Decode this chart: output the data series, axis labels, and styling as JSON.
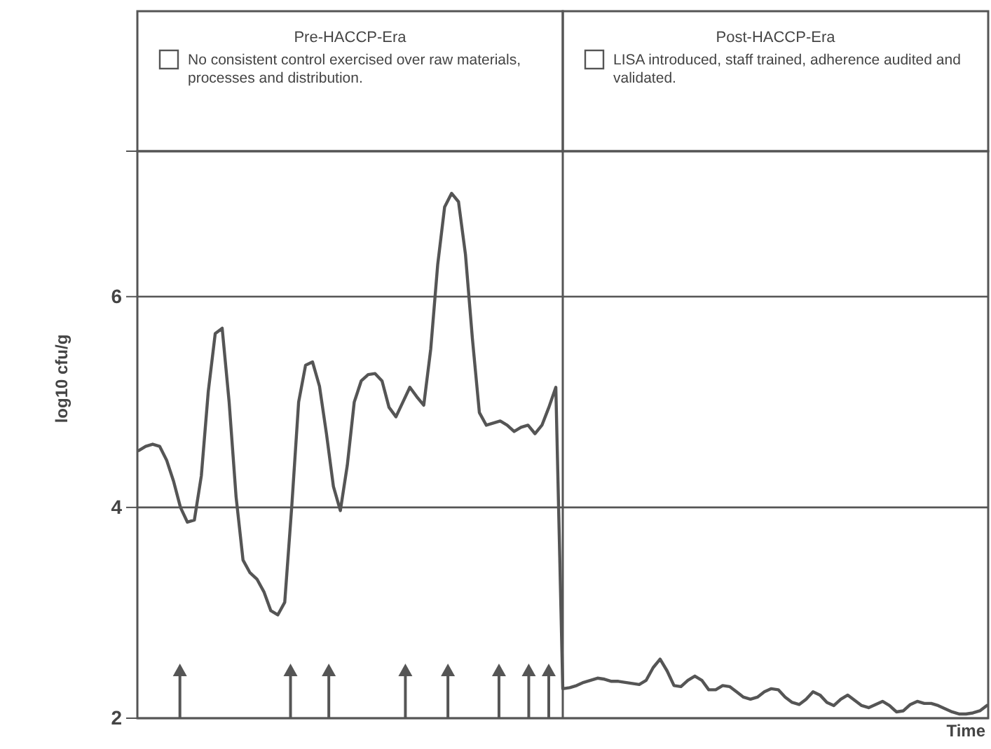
{
  "chart_data": {
    "type": "line",
    "ylabel": "log10 cfu/g",
    "xlabel": "Time",
    "annotations": [
      "Pre-HACCP-Era",
      "No consistent control exercised over raw materials, processes and distribution.",
      "Post-HACCP-Era",
      "LISA introduced, staff trained, adherence audited and validated."
    ],
    "categories": [
      null,
      null,
      null,
      null,
      null,
      null,
      null,
      null,
      null,
      null,
      null,
      null,
      null,
      null,
      null,
      null,
      null,
      null,
      null,
      null,
      null,
      null,
      null,
      null,
      null,
      null,
      null,
      null,
      null,
      null,
      null,
      null,
      null,
      null,
      null,
      null,
      null,
      null,
      null,
      null,
      null,
      null,
      null,
      null,
      null,
      null,
      null,
      null,
      null,
      null,
      null,
      null,
      null,
      null,
      null,
      null,
      null,
      null,
      null,
      null,
      null,
      null,
      null,
      null,
      null,
      null,
      null,
      null,
      null,
      null,
      null,
      null,
      null,
      null,
      null,
      null,
      null,
      null,
      null,
      null,
      null,
      null,
      null,
      null,
      null,
      null,
      null,
      null,
      null,
      null,
      null,
      null,
      null,
      null,
      null,
      null,
      null,
      null,
      null,
      null,
      null,
      null,
      null,
      null,
      null,
      null,
      null,
      null,
      null,
      null,
      null,
      null,
      null,
      null,
      null,
      null,
      null,
      null,
      null,
      null,
      null,
      null,
      null
    ],
    "series": [
      {
        "color": "#555555",
        "values": [
          4.54,
          4.58,
          4.6,
          4.58,
          4.45,
          4.25,
          4.0,
          3.86,
          3.88,
          4.3,
          5.1,
          5.65,
          5.7,
          5.0,
          4.1,
          3.5,
          3.38,
          3.32,
          3.2,
          3.02,
          2.98,
          3.1,
          4.0,
          5.0,
          5.35,
          5.38,
          5.15,
          4.7,
          4.2,
          3.97,
          4.4,
          5.0,
          5.2,
          5.26,
          5.27,
          5.2,
          4.95,
          4.86,
          5.0,
          5.14,
          5.05,
          4.97,
          5.5,
          6.3,
          6.85,
          6.98,
          6.9,
          6.4,
          5.6,
          4.9,
          4.78,
          4.8,
          4.82,
          4.78,
          4.72,
          4.76,
          4.78,
          4.7,
          4.78,
          4.95,
          5.14,
          2.28,
          2.29,
          2.31,
          2.34,
          2.36,
          2.38,
          2.37,
          2.35,
          2.35,
          2.34,
          2.33,
          2.32,
          2.36,
          2.48,
          2.56,
          2.45,
          2.31,
          2.3,
          2.36,
          2.4,
          2.36,
          2.27,
          2.27,
          2.31,
          2.3,
          2.25,
          2.2,
          2.18,
          2.2,
          2.25,
          2.28,
          2.27,
          2.2,
          2.15,
          2.13,
          2.18,
          2.25,
          2.22,
          2.15,
          2.12,
          2.18,
          2.22,
          2.17,
          2.12,
          2.1,
          2.13,
          2.16,
          2.12,
          2.06,
          2.07,
          2.13,
          2.16,
          2.14,
          2.14,
          2.12,
          2.09,
          2.06,
          2.04,
          2.04,
          2.05,
          2.07,
          2.12
        ]
      }
    ],
    "ylim": [
      2,
      7.38
    ],
    "yticks": [
      2,
      4,
      6
    ],
    "grid": "y",
    "tick_labels": "y",
    "line_style": "solid"
  }
}
